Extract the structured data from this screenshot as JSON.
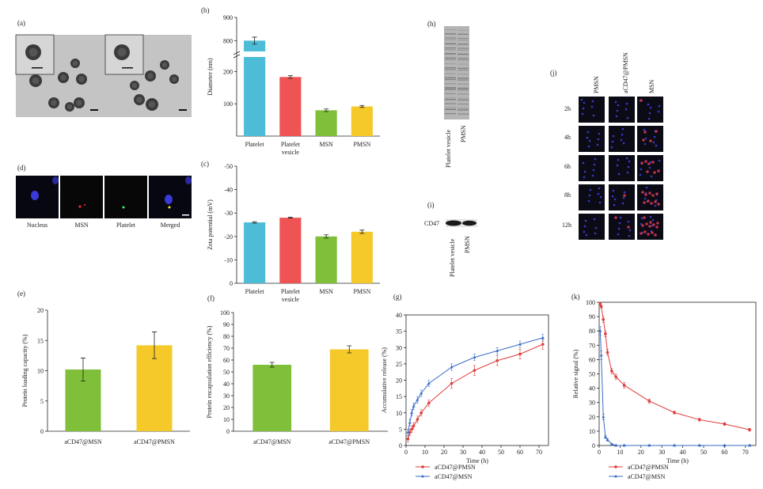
{
  "panel_letters": {
    "a": "(a)",
    "b": "(b)",
    "c": "(c)",
    "d": "(d)",
    "e": "(e)",
    "f": "(f)",
    "g": "(g)",
    "h": "(h)",
    "i": "(i)",
    "j": "(j)",
    "k": "(k)"
  },
  "colors": {
    "cyan": "#4dbcd6",
    "red": "#ef5353",
    "green": "#7fbf3a",
    "yellow": "#f5c92a",
    "line_red": "#e03c3c",
    "line_blue": "#3a6ec7",
    "blot_bg": "#b8b8b8"
  },
  "panel_d_labels": [
    "Nucleus",
    "MSN",
    "Platelet",
    "Merged"
  ],
  "panel_h_labels": [
    "Platelet vesicle",
    "PMSN"
  ],
  "panel_i": {
    "protein": "CD47",
    "labels": [
      "Platelet vesicle",
      "PMSN"
    ]
  },
  "panel_j": {
    "columns": [
      "PMSN",
      "aCD47@PMSN",
      "MSN"
    ],
    "rows": [
      "2h",
      "4h",
      "6h",
      "8h",
      "12h"
    ]
  },
  "chart_data": [
    {
      "id": "b",
      "type": "bar",
      "categories": [
        "Platelet",
        "Platelet vesicle",
        "MSN",
        "PMSN"
      ],
      "values": [
        800,
        183,
        80,
        92
      ],
      "errors": [
        15,
        4,
        4,
        3
      ],
      "ylabel": "Diameter (nm)",
      "ylim": [
        0,
        900
      ],
      "axis_break": [
        250,
        750
      ],
      "yticks_lower": [
        100,
        200
      ],
      "yticks_upper": [
        800,
        900
      ]
    },
    {
      "id": "c",
      "type": "bar",
      "categories": [
        "Platelet",
        "Platelet vesicle",
        "MSN",
        "PMSN"
      ],
      "values": [
        -26,
        -28,
        -20,
        -22
      ],
      "errors": [
        0.3,
        0.2,
        0.7,
        0.7
      ],
      "ylabel": "Zeta potential (mV)",
      "ylim": [
        -50,
        0
      ],
      "yticks": [
        -50,
        -40,
        -30,
        -20,
        -10,
        0
      ]
    },
    {
      "id": "e",
      "type": "bar",
      "categories": [
        "aCD47@MSN",
        "aCD47@PMSN"
      ],
      "values": [
        10.2,
        14.2
      ],
      "errors": [
        1.9,
        2.2
      ],
      "ylabel": "Protein loading capacity (%)",
      "ylim": [
        0,
        20
      ],
      "yticks": [
        0,
        5,
        10,
        15,
        20
      ]
    },
    {
      "id": "f",
      "type": "bar",
      "categories": [
        "aCD47@MSN",
        "aCD47@PMSN"
      ],
      "values": [
        56,
        69
      ],
      "errors": [
        2,
        3
      ],
      "ylabel": "Protein encapsulation efficiency (%)",
      "ylim": [
        0,
        100
      ],
      "yticks": [
        0,
        10,
        20,
        30,
        40,
        50,
        60,
        70,
        80,
        90,
        100
      ]
    },
    {
      "id": "g",
      "type": "line",
      "xlabel": "Time (h)",
      "ylabel": "Accumulative release (%)",
      "xlim": [
        0,
        75
      ],
      "ylim": [
        0,
        40
      ],
      "xticks": [
        0,
        10,
        20,
        30,
        40,
        50,
        60,
        70
      ],
      "yticks": [
        0,
        5,
        10,
        15,
        20,
        25,
        30,
        35,
        40
      ],
      "series": [
        {
          "name": "aCD47@PMSN",
          "x": [
            1,
            2,
            3,
            4,
            6,
            8,
            12,
            24,
            36,
            48,
            60,
            72
          ],
          "y": [
            2,
            4,
            5,
            6,
            8,
            10,
            13,
            19,
            23,
            26,
            28,
            31
          ],
          "err": [
            1,
            1,
            1,
            1,
            1,
            1,
            1,
            1.5,
            1.5,
            1.5,
            1.5,
            1.5
          ]
        },
        {
          "name": "aCD47@MSN",
          "x": [
            1,
            2,
            3,
            4,
            6,
            8,
            12,
            24,
            36,
            48,
            60,
            72
          ],
          "y": [
            4,
            7,
            10,
            12,
            14,
            16,
            19,
            24,
            27,
            29,
            31,
            33
          ],
          "err": [
            1,
            1,
            1,
            1,
            1,
            1,
            1,
            1,
            1,
            1,
            1,
            1
          ]
        }
      ]
    },
    {
      "id": "k",
      "type": "line",
      "xlabel": "Time (h)",
      "ylabel": "Relative signal (%)",
      "xlim": [
        0,
        75
      ],
      "ylim": [
        0,
        100
      ],
      "xticks": [
        0,
        10,
        20,
        30,
        40,
        50,
        60,
        70
      ],
      "yticks": [
        0,
        10,
        20,
        30,
        40,
        50,
        60,
        70,
        80,
        90,
        100
      ],
      "series": [
        {
          "name": "aCD47@PMSN",
          "x": [
            0.5,
            1,
            2,
            3,
            4,
            6,
            8,
            12,
            24,
            36,
            48,
            60,
            72
          ],
          "y": [
            99,
            97,
            88,
            78,
            65,
            52,
            48,
            42,
            31,
            23,
            18,
            15,
            11
          ],
          "err": [
            1,
            1,
            2,
            2,
            2,
            2,
            2,
            2,
            1.5,
            1,
            1,
            1,
            1
          ]
        },
        {
          "name": "aCD47@MSN",
          "x": [
            0.5,
            1,
            2,
            3,
            4,
            6,
            8,
            12,
            24,
            36,
            48,
            60,
            72
          ],
          "y": [
            80,
            63,
            20,
            6,
            4,
            1,
            0,
            0,
            0,
            0,
            0,
            0,
            0
          ],
          "err": [
            3,
            3,
            2,
            1,
            1,
            0.5,
            0.5,
            0.5,
            0.5,
            0.5,
            0.5,
            0.5,
            0.5
          ]
        }
      ]
    }
  ]
}
